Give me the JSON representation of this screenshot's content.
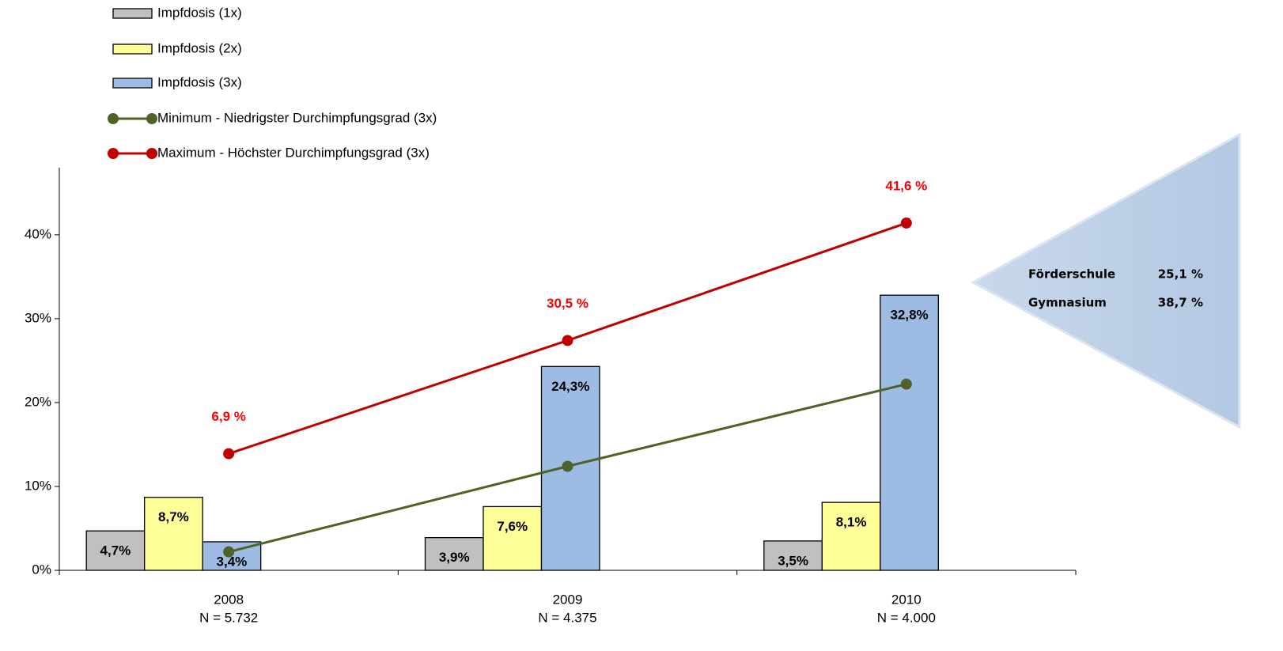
{
  "chart_data": {
    "type": "bar",
    "categories": [
      "2008",
      "2009",
      "2010"
    ],
    "category_sublabels": [
      "N = 5.732",
      "N = 4.375",
      "N = 4.000"
    ],
    "ylim": [
      0,
      48
    ],
    "yticks": [
      {
        "value": 0,
        "label": "0%"
      },
      {
        "value": 10,
        "label": "10%"
      },
      {
        "value": 20,
        "label": "20%"
      },
      {
        "value": 30,
        "label": "30%"
      },
      {
        "value": 40,
        "label": "40%"
      }
    ],
    "grid": false,
    "legend": "top-left",
    "series": [
      {
        "name": "Impfdosis (1x)",
        "type": "bar",
        "color": "#c0c0c0",
        "values": [
          4.7,
          3.9,
          3.5
        ],
        "value_labels": [
          "4,7%",
          "3,9%",
          "3,5%"
        ]
      },
      {
        "name": "Impfdosis (2x)",
        "type": "bar",
        "color": "#ffff99",
        "values": [
          8.7,
          7.6,
          8.1
        ],
        "value_labels": [
          "8,7%",
          "7,6%",
          "8,1%"
        ]
      },
      {
        "name": "Impfdosis (3x)",
        "type": "bar",
        "color": "#9dbbe3",
        "values": [
          3.4,
          24.3,
          32.8
        ],
        "value_labels": [
          "3,4%",
          "24,3%",
          "32,8%"
        ]
      },
      {
        "name": "Minimum - Niedrigster Durchimpfungsgrad (3x)",
        "type": "line",
        "color": "#4f6228",
        "values": [
          2.2,
          12.4,
          22.2
        ]
      },
      {
        "name": "Maximum - Höchster Durchimpfungsgrad (3x)",
        "type": "line",
        "color": "#c00000",
        "values": [
          13.9,
          27.4,
          41.4
        ]
      }
    ],
    "annotations": [
      "6,9 %",
      "30,5 %",
      "41,6 %"
    ],
    "annotation_color": "#ff0000",
    "callout": {
      "rows": [
        [
          "Förderschule",
          "25,1 %"
        ],
        [
          "Gymnasium",
          "38,7 %"
        ]
      ]
    }
  }
}
